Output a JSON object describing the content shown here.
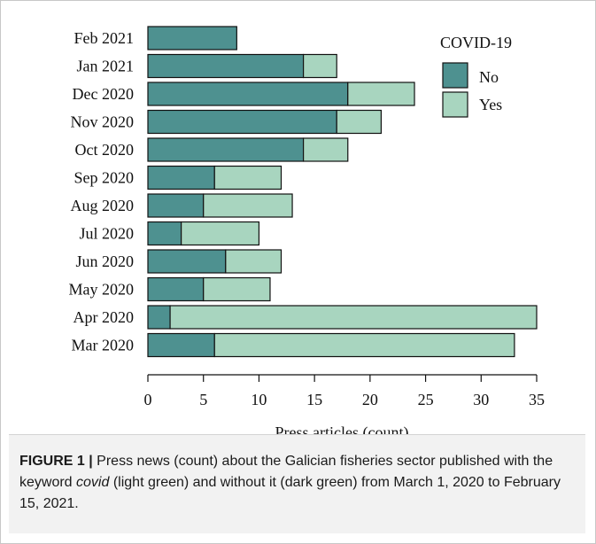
{
  "chart_data": {
    "type": "bar",
    "orientation": "horizontal",
    "stacked": true,
    "categories": [
      "Mar 2020",
      "Apr 2020",
      "May 2020",
      "Jun 2020",
      "Jul 2020",
      "Aug 2020",
      "Sep 2020",
      "Oct 2020",
      "Nov 2020",
      "Dec 2020",
      "Jan 2021",
      "Feb 2021"
    ],
    "series": [
      {
        "name": "No",
        "values": [
          6,
          2,
          5,
          7,
          3,
          5,
          6,
          14,
          17,
          18,
          14,
          8
        ],
        "color": "#4e9190"
      },
      {
        "name": "Yes",
        "values": [
          27,
          33,
          6,
          5,
          7,
          8,
          6,
          4,
          4,
          6,
          3,
          0
        ],
        "color": "#a8d5bf"
      }
    ],
    "xlabel": "Press articles (count)",
    "ylabel": "",
    "xlim": [
      0,
      35
    ],
    "xticks": [
      0,
      5,
      10,
      15,
      20,
      25,
      30,
      35
    ],
    "legend_title": "COVID-19",
    "legend_position": "top-right",
    "grid": false
  },
  "caption": {
    "label": "FIGURE 1 |",
    "text_before": " Press news (count) about the Galician fisheries sector published with the keyword ",
    "keyword": "covid",
    "text_after": " (light green) and without it (dark green) from March 1, 2020 to February 15, 2021."
  }
}
